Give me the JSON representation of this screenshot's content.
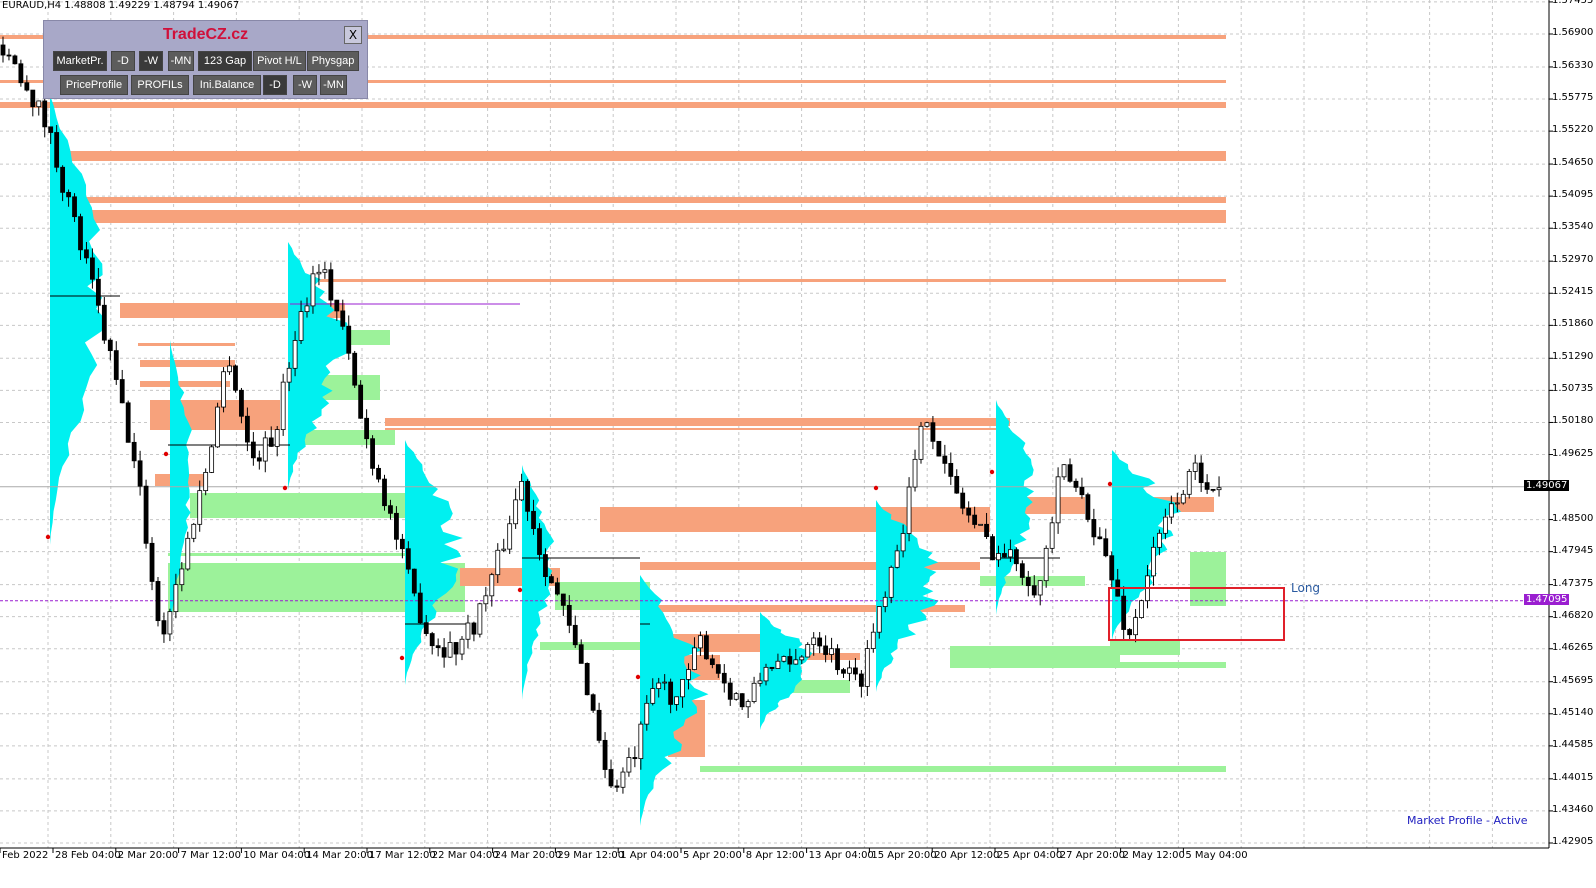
{
  "header": {
    "symbol_line": "EURAUD,H4  1.48808 1.49229 1.48794 1.49067"
  },
  "panel": {
    "title": "TradeCZ.cz",
    "close_label": "X",
    "row1": [
      "MarketPr.",
      "-D",
      "-W",
      "-MN",
      "123 Gap",
      "Pivot H/L",
      "Physgap"
    ],
    "row2": [
      "PriceProfile",
      "PROFILs",
      "Ini.Balance",
      "-D",
      "-W",
      "-MN"
    ]
  },
  "price_axis": [
    "1.57455",
    "1.56900",
    "1.56330",
    "1.55775",
    "1.55220",
    "1.54650",
    "1.54095",
    "1.53540",
    "1.52970",
    "1.52415",
    "1.51860",
    "1.51290",
    "1.50735",
    "1.50180",
    "1.49625",
    "1.49067",
    "1.48500",
    "1.47945",
    "1.47375",
    "1.47095",
    "1.46820",
    "1.46265",
    "1.45695",
    "1.45140",
    "1.44585",
    "1.44015",
    "1.43460",
    "1.42905"
  ],
  "current_price": "1.49067",
  "line_price": "1.47095",
  "time_axis": [
    "Feb 2022",
    "28 Feb 04:00",
    "2 Mar 20:00",
    "7 Mar 12:00",
    "10 Mar 04:00",
    "14 Mar 20:00",
    "17 Mar 12:00",
    "22 Mar 04:00",
    "24 Mar 20:00",
    "29 Mar 12:00",
    "1 Apr 04:00",
    "5 Apr 20:00",
    "8 Apr 12:00",
    "13 Apr 04:00",
    "15 Apr 20:00",
    "20 Apr 12:00",
    "25 Apr 04:00",
    "27 Apr 20:00",
    "2 May 12:00",
    "5 May 04:00"
  ],
  "status_text": "Market Profile - Active",
  "long_label": "Long",
  "colors": {
    "resistance_zone": "#f7a27c",
    "support_zone": "#9cf29a",
    "profile": "#00f0f0",
    "long_box": "#e0202a",
    "line": "#9a1ed0"
  },
  "chart_data": {
    "type": "candlestick",
    "symbol": "EURAUD",
    "timeframe": "H4",
    "ylim": [
      1.42905,
      1.57455
    ],
    "close_path": [
      1.5671,
      1.561,
      1.5524,
      1.5386,
      1.5247,
      1.5091,
      1.4918,
      1.4642,
      1.478,
      1.4936,
      1.5143,
      1.4953,
      1.4988,
      1.5178,
      1.5299,
      1.5195,
      1.5005,
      1.4884,
      1.4745,
      1.4642,
      1.4624,
      1.4676,
      1.478,
      1.4918,
      1.478,
      1.4676,
      1.4555,
      1.4382,
      1.4434,
      1.4572,
      1.4538,
      1.4642,
      1.4572,
      1.4521,
      1.4607,
      1.459,
      1.4659,
      1.4607,
      1.4564,
      1.4711,
      1.4849,
      1.504,
      1.4918,
      1.4849,
      1.4797,
      1.478,
      1.4728,
      1.4936,
      1.4884,
      1.478,
      1.4642,
      1.478,
      1.4884,
      1.4936,
      1.49067
    ],
    "grid": true
  }
}
